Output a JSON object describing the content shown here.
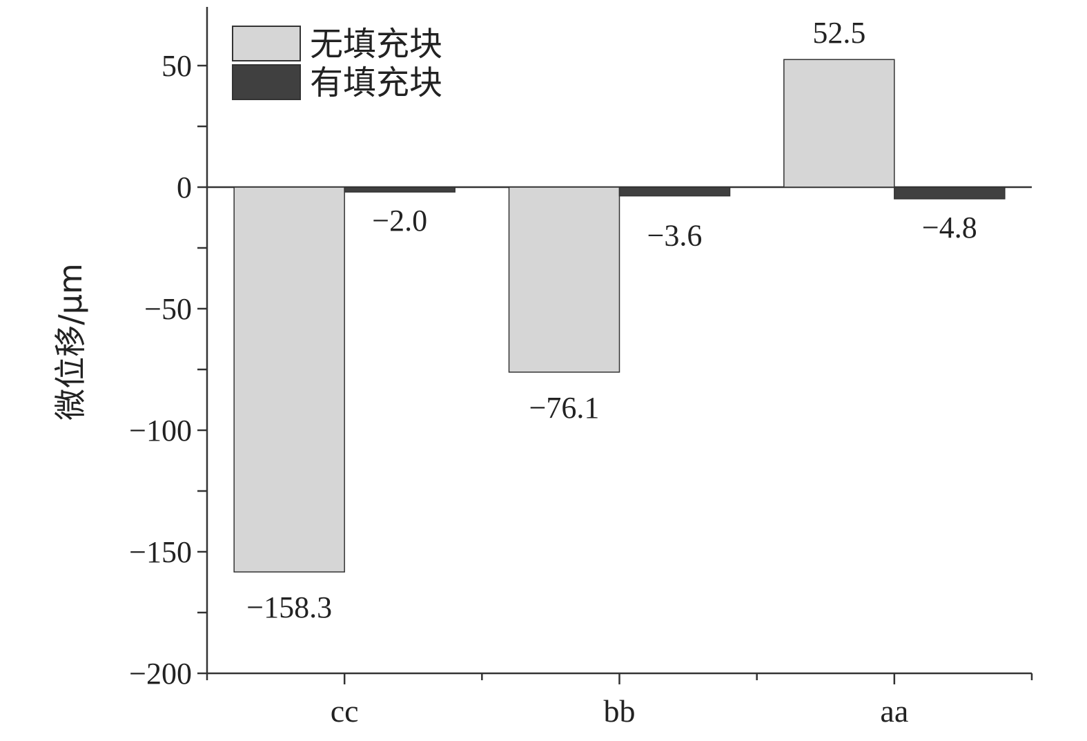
{
  "chart_data": {
    "type": "bar",
    "categories": [
      "cc",
      "bb",
      "aa"
    ],
    "series": [
      {
        "name": "无填充块",
        "values": [
          -158.3,
          -76.1,
          52.5
        ],
        "color": "#d6d6d6"
      },
      {
        "name": "有填充块",
        "values": [
          -2.0,
          -3.6,
          -4.8
        ],
        "color": "#404040"
      }
    ],
    "data_labels": [
      [
        "−158.3",
        "−76.1",
        "52.5"
      ],
      [
        "−2.0",
        "−3.6",
        "−4.8"
      ]
    ],
    "title": "",
    "xlabel": "",
    "ylabel": "微位移/μm",
    "ylim": [
      -200,
      75
    ],
    "yticks": [
      50,
      0,
      -50,
      -100,
      -150,
      -200
    ],
    "ytick_labels": [
      "50",
      "0",
      "−50",
      "−100",
      "−150",
      "−200"
    ],
    "grid": false,
    "legend_position": "top-left"
  }
}
